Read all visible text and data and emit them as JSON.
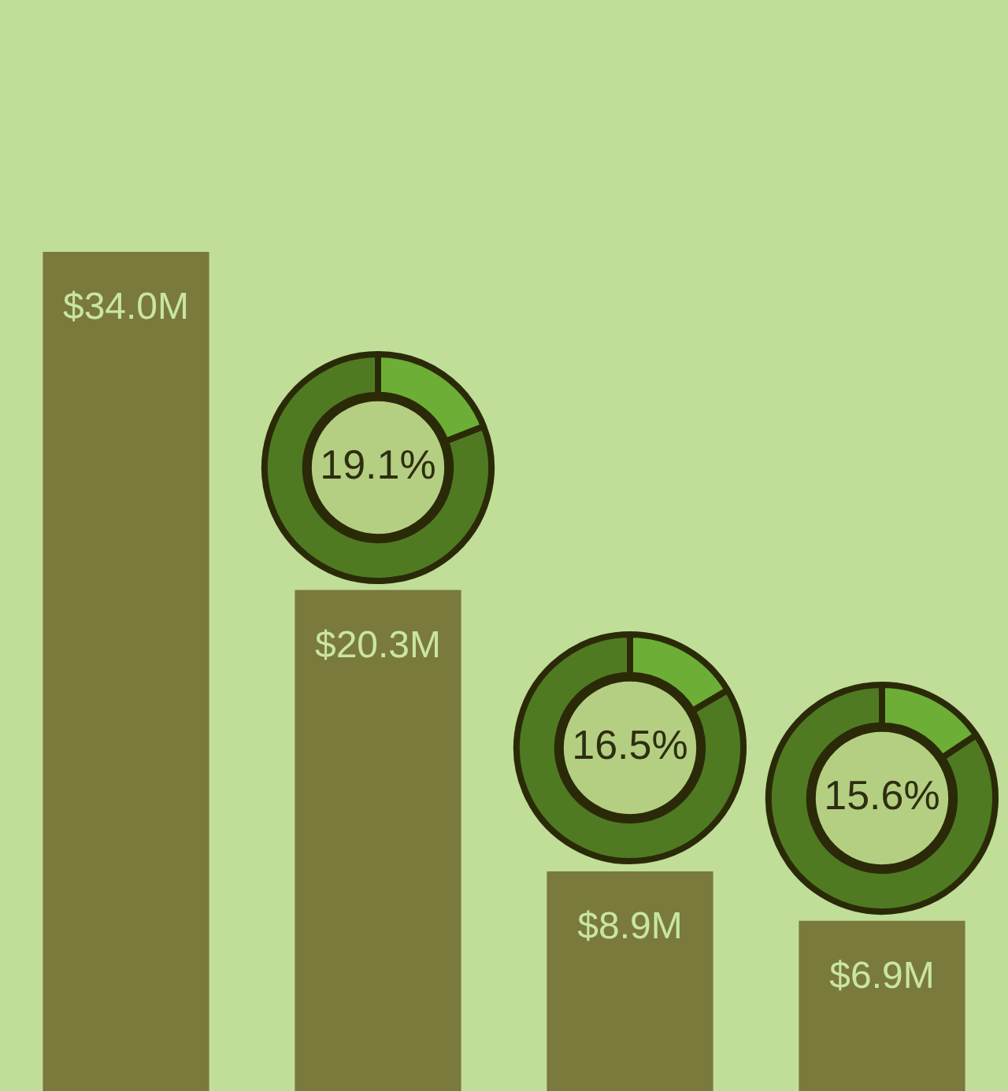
{
  "chart_data": [
    {
      "type": "bar",
      "categories": [
        null,
        null,
        null,
        null
      ],
      "values": [
        34.0,
        20.3,
        8.9,
        6.9
      ],
      "color": "#7a7a3c",
      "value_labels": [
        "$34.0M",
        "$20.3M",
        "$8.9M",
        "$6.9M"
      ],
      "legend": false
    },
    {
      "type": "donut",
      "categories": [
        null,
        null
      ],
      "values": [
        19.1,
        80.9
      ],
      "colors": [
        "#6cae36",
        "#4f7a22"
      ],
      "value_labels": [
        "19.1%",
        null
      ]
    },
    {
      "type": "donut",
      "categories": [
        null,
        null
      ],
      "values": [
        16.5,
        83.5
      ],
      "colors": [
        "#6cae36",
        "#4f7a22"
      ],
      "value_labels": [
        "16.5%",
        null
      ]
    },
    {
      "type": "donut",
      "categories": [
        null,
        null
      ],
      "values": [
        15.6,
        84.4
      ],
      "colors": [
        "#6cae36",
        "#4f7a22"
      ],
      "value_labels": [
        "15.6%",
        null
      ]
    }
  ]
}
